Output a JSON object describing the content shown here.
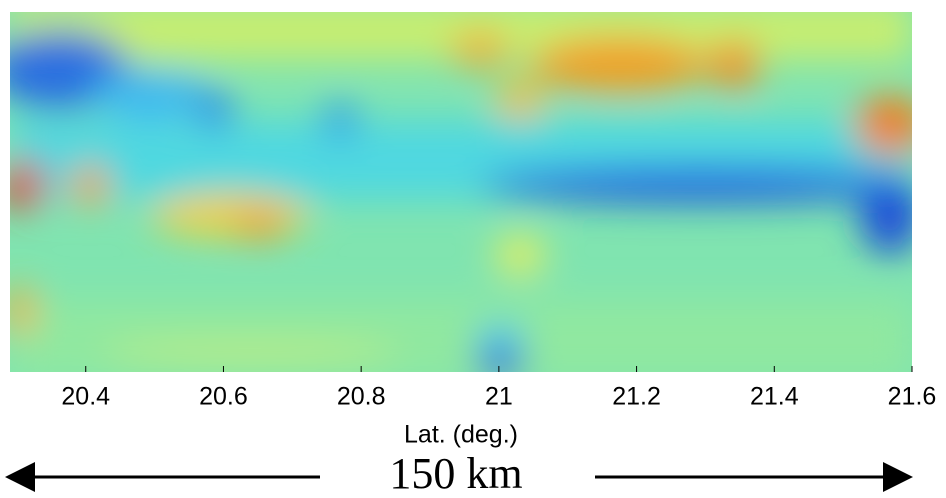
{
  "chart_data": {
    "type": "heatmap",
    "x_label": "Lat. (deg.)",
    "xlim": [
      20.29,
      21.6
    ],
    "xticks": [
      20.4,
      20.6,
      20.8,
      21,
      21.2,
      21.4,
      21.6
    ],
    "annotation": "150 km"
  }
}
